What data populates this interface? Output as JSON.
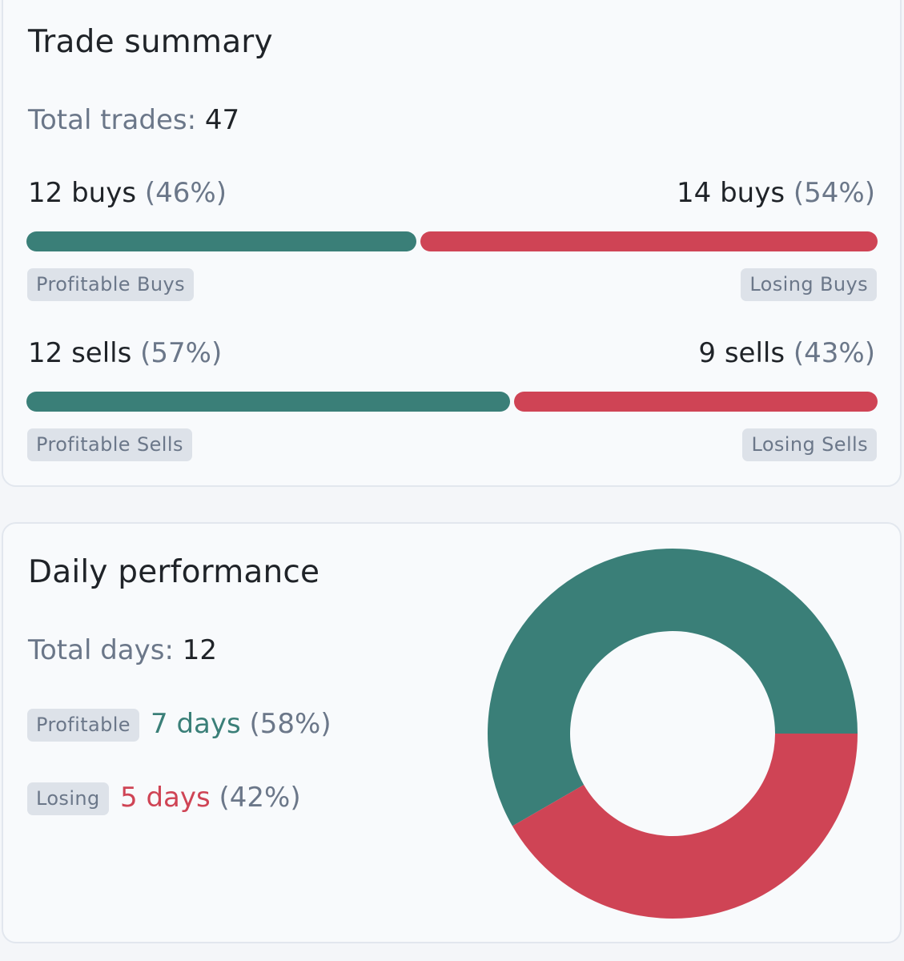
{
  "trade_summary": {
    "title": "Trade summary",
    "total_label": "Total trades:",
    "total_value": "47",
    "buys": {
      "profitable_count": "12 buys",
      "profitable_pct": "(46%)",
      "losing_count": "14 buys",
      "losing_pct": "(54%)",
      "profitable_fraction": 0.46,
      "profitable_chip": "Profitable Buys",
      "losing_chip": "Losing Buys"
    },
    "sells": {
      "profitable_count": "12 sells",
      "profitable_pct": "(57%)",
      "losing_count": "9 sells",
      "losing_pct": "(43%)",
      "profitable_fraction": 0.57,
      "profitable_chip": "Profitable Sells",
      "losing_chip": "Losing Sells"
    }
  },
  "daily_performance": {
    "title": "Daily performance",
    "total_label": "Total days:",
    "total_value": "12",
    "profitable_chip": "Profitable",
    "profitable_days": "7 days",
    "profitable_pct": "(58%)",
    "losing_chip": "Losing",
    "losing_days": "5 days",
    "losing_pct": "(42%)"
  },
  "colors": {
    "profit": "#3a7f78",
    "loss": "#cf4455"
  },
  "chart_data": {
    "type": "pie",
    "categories": [
      "Profitable",
      "Losing"
    ],
    "values": [
      7,
      5
    ],
    "colors": [
      "#3a7f78",
      "#cf4455"
    ]
  }
}
